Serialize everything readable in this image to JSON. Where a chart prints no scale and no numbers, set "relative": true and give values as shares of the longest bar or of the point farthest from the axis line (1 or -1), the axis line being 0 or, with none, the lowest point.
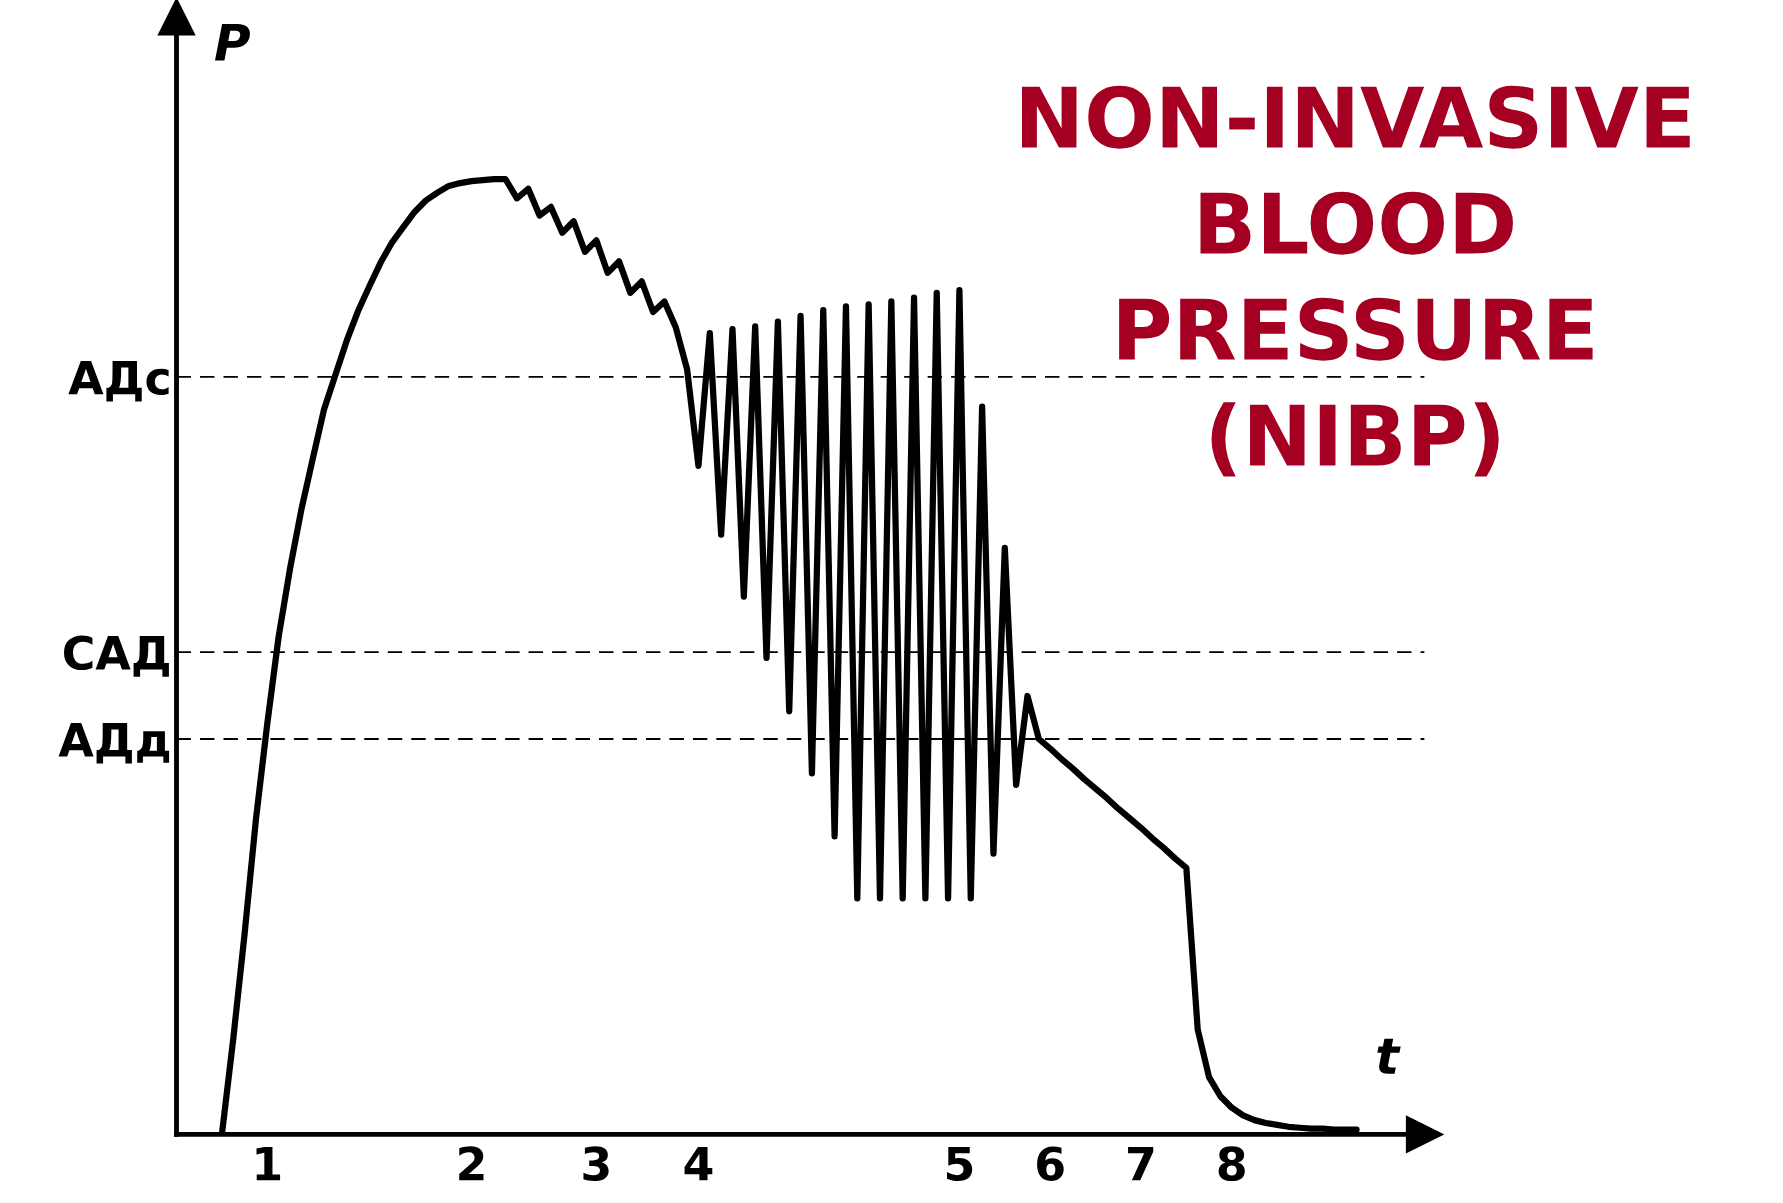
{
  "chart_data": {
    "type": "line",
    "title": "NON-INVASIVE\nBLOOD\nPRESSURE\n(NIBP)",
    "xlabel": "t",
    "ylabel": "P",
    "relative": true,
    "categories": [
      null,
      null,
      null,
      null,
      null,
      null,
      null,
      null,
      "1",
      null,
      null,
      null,
      null,
      null,
      null,
      null,
      null,
      null,
      null,
      null,
      null,
      null,
      null,
      null,
      null,
      null,
      "2",
      null,
      null,
      null,
      null,
      null,
      null,
      null,
      null,
      null,
      null,
      "3",
      null,
      null,
      null,
      null,
      null,
      null,
      null,
      null,
      "4",
      null,
      null,
      null,
      null,
      null,
      null,
      null,
      null,
      null,
      null,
      null,
      null,
      null,
      null,
      null,
      null,
      null,
      null,
      null,
      null,
      null,
      null,
      "5",
      null,
      null,
      null,
      null,
      null,
      null,
      null,
      "6",
      null,
      null,
      null,
      null,
      null,
      null,
      null,
      "7",
      null,
      null,
      null,
      null,
      null,
      null,
      null,
      "8",
      null,
      null,
      null,
      null,
      null,
      null,
      null,
      null,
      null,
      null,
      null,
      null,
      null,
      null,
      null,
      null,
      null
    ],
    "series": [
      {
        "color": "#000000",
        "values": [
          null,
          null,
          null,
          null,
          0,
          0.1,
          0.21,
          0.33,
          0.43,
          0.521,
          0.592,
          0.654,
          0.707,
          0.759,
          0.795,
          0.831,
          0.862,
          0.888,
          0.913,
          0.934,
          0.95,
          0.966,
          0.978,
          0.986,
          0.993,
          0.996,
          0.998,
          0.999,
          1,
          1,
          0.98,
          0.99,
          0.962,
          0.971,
          0.944,
          0.956,
          0.924,
          0.936,
          0.902,
          0.914,
          0.881,
          0.893,
          0.861,
          0.872,
          0.845,
          0.801,
          0.7,
          0.839,
          0.628,
          0.843,
          0.563,
          0.846,
          0.499,
          0.851,
          0.443,
          0.857,
          0.378,
          0.863,
          0.312,
          0.867,
          0.247,
          0.869,
          0.247,
          0.872,
          0.247,
          0.876,
          0.247,
          0.881,
          0.247,
          0.884,
          0.247,
          0.762,
          0.294,
          0.614,
          0.366,
          0.459,
          0.414,
          0.404,
          0.393,
          0.383,
          0.372,
          0.362,
          0.352,
          0.341,
          0.331,
          0.321,
          0.31,
          0.3,
          0.289,
          0.279,
          0.11,
          0.06,
          0.04,
          0.028,
          0.02,
          0.015,
          0.012,
          0.01,
          0.008,
          0.007,
          0.006,
          0.006,
          0.005,
          0.005,
          0.005,
          null,
          null,
          null,
          null,
          null,
          null
        ]
      }
    ],
    "ref_lines": [
      {
        "axis": "y",
        "value": 0.793,
        "label": "АДс",
        "line_style": "dashed",
        "color": "#000000"
      },
      {
        "axis": "y",
        "value": 0.505,
        "label": "САД",
        "line_style": "dashed",
        "color": "#000000"
      },
      {
        "axis": "y",
        "value": 0.414,
        "label": "АДд",
        "line_style": "dashed",
        "color": "#000000"
      }
    ],
    "line_style": "solid",
    "marker": "none",
    "grid": false,
    "legend": false
  }
}
